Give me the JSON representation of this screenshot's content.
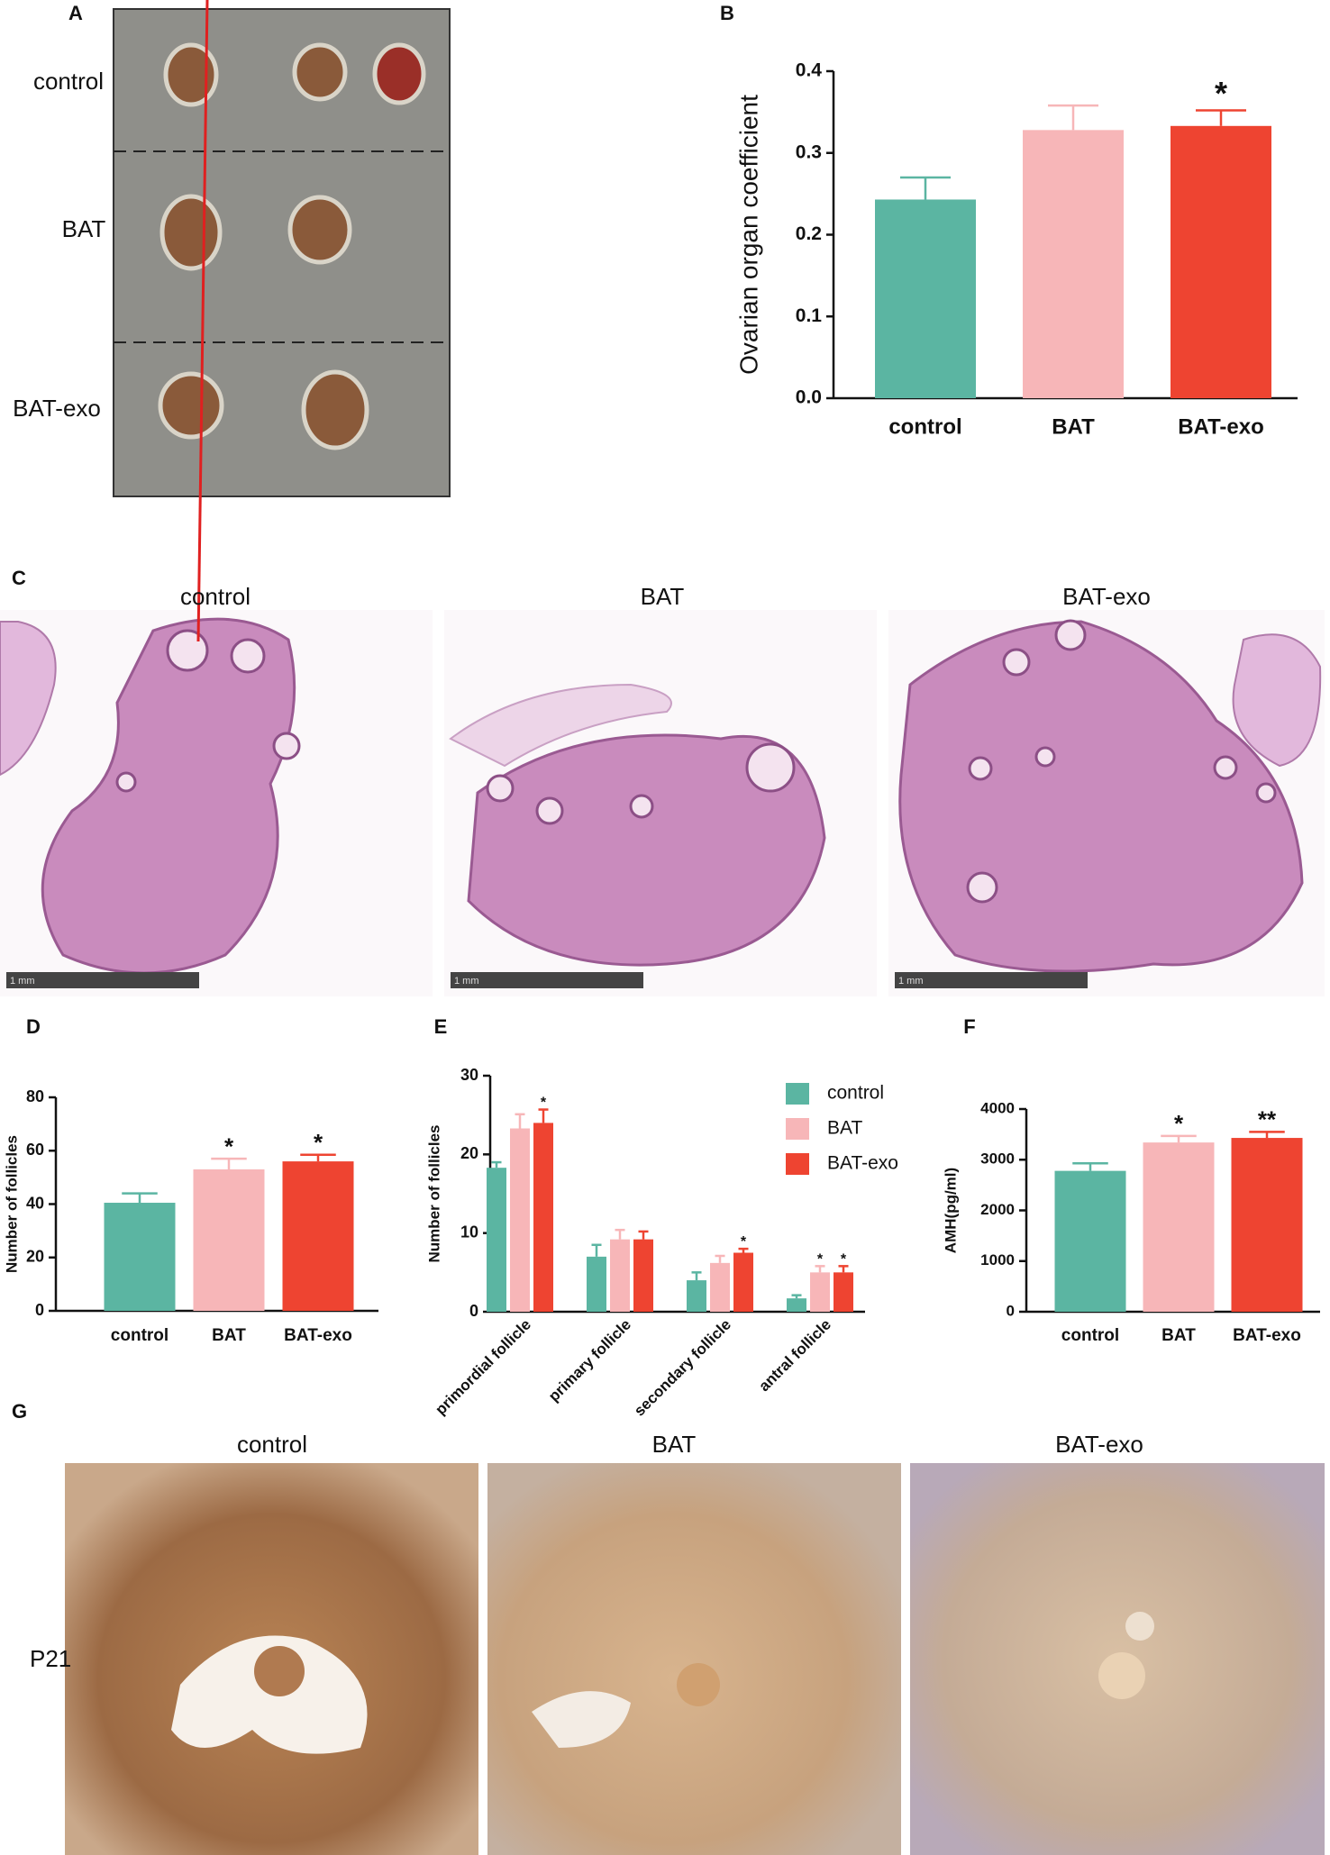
{
  "panels": {
    "A": "A",
    "B": "B",
    "C": "C",
    "D": "D",
    "E": "E",
    "F": "F",
    "G": "G",
    "a_rows": [
      "control",
      "BAT",
      "BAT-exo"
    ],
    "c_columns": [
      "control",
      "BAT",
      "BAT-exo"
    ],
    "c_scale": [
      "1 mm",
      "1 mm",
      "1 mm"
    ],
    "g_columns": [
      "control",
      "BAT",
      "BAT-exo"
    ],
    "g_row": "P21"
  },
  "chart_data": [
    {
      "type": "bar",
      "y_label": "Ovarian organ coefficient",
      "categories": [
        "control",
        "BAT",
        "BAT-exo"
      ],
      "values": [
        0.243,
        0.328,
        0.333
      ],
      "errors": [
        0.027,
        0.03,
        0.019
      ],
      "colors": [
        "#5bb5a2",
        "#f7b6b8",
        "#ee4431"
      ],
      "annotations": [
        null,
        null,
        "*"
      ],
      "ylim": [
        0,
        0.4
      ],
      "yticks": [
        {
          "value": 0,
          "label": "0.0"
        },
        0.1,
        0.2,
        0.3,
        0.4
      ]
    },
    {
      "type": "bar",
      "y_label": "Number of follicles",
      "categories": [
        "control",
        "BAT",
        "BAT-exo"
      ],
      "values": [
        40.5,
        53,
        56
      ],
      "errors": [
        3.5,
        4,
        2.5
      ],
      "colors": [
        "#5bb5a2",
        "#f7b6b8",
        "#ee4431"
      ],
      "annotations": [
        null,
        "*",
        "*"
      ],
      "ylim": [
        0,
        80
      ],
      "yticks": [
        0,
        20,
        40,
        60,
        80
      ]
    },
    {
      "type": "grouped_bar",
      "y_label": "Number of follicles",
      "categories": [
        "primordial follicle",
        "primary follicle",
        "secondary follicle",
        "antral follicle"
      ],
      "series": [
        {
          "name": "control",
          "color": "#5bb5a2",
          "values": [
            18.3,
            7,
            4,
            1.7
          ],
          "errors": [
            0.7,
            1.5,
            1,
            0.4
          ],
          "annotations": [
            null,
            null,
            null,
            null
          ]
        },
        {
          "name": "BAT",
          "color": "#f7b6b8",
          "values": [
            23.3,
            9.2,
            6.2,
            5
          ],
          "errors": [
            1.8,
            1.2,
            0.9,
            0.8
          ],
          "annotations": [
            null,
            null,
            null,
            "*"
          ]
        },
        {
          "name": "BAT-exo",
          "color": "#ee4431",
          "values": [
            24,
            9.2,
            7.5,
            5
          ],
          "errors": [
            1.7,
            1,
            0.5,
            0.8
          ],
          "annotations": [
            "*",
            null,
            "*",
            "*"
          ]
        }
      ],
      "ylim": [
        0,
        30
      ],
      "yticks": [
        0,
        10,
        20,
        30
      ],
      "legend": "top-right"
    },
    {
      "type": "bar",
      "y_label": "AMH(pg/ml)",
      "categories": [
        "control",
        "BAT",
        "BAT-exo"
      ],
      "values": [
        2780,
        3340,
        3430
      ],
      "errors": [
        150,
        130,
        120
      ],
      "colors": [
        "#5bb5a2",
        "#f7b6b8",
        "#ee4431"
      ],
      "annotations": [
        null,
        "*",
        "**"
      ],
      "ylim": [
        0,
        4000
      ],
      "yticks": [
        0,
        1000,
        2000,
        3000,
        4000
      ]
    }
  ]
}
